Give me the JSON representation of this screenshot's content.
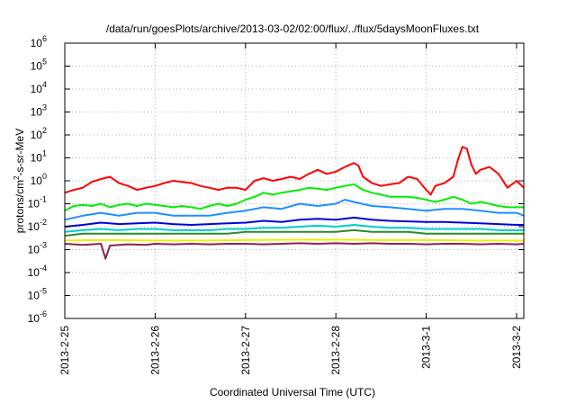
{
  "chart_data": {
    "type": "line",
    "title": "/data/run/goesPlots/archive/2013-03-02/02:00/flux/../flux/5daysMoonFluxes.txt",
    "xlabel": "Coordinated Universal Time (UTC)",
    "ylabel_parts": {
      "base": "protons/cm",
      "sup": "2",
      "rest": "-s-sr-MeV"
    },
    "y_scale": "log",
    "ylim": [
      1e-06,
      1000000.0
    ],
    "y_ticks": [
      {
        "exp": "-6"
      },
      {
        "exp": "-5"
      },
      {
        "exp": "-4"
      },
      {
        "exp": "-3"
      },
      {
        "exp": "-2"
      },
      {
        "exp": "-1"
      },
      {
        "exp": "0"
      },
      {
        "exp": "1"
      },
      {
        "exp": "2"
      },
      {
        "exp": "3"
      },
      {
        "exp": "4"
      },
      {
        "exp": "5"
      },
      {
        "exp": "6"
      }
    ],
    "x_ticks": [
      {
        "label": "2013-2-25",
        "day": 0
      },
      {
        "label": "2013-2-26",
        "day": 1
      },
      {
        "label": "2013-2-27",
        "day": 2
      },
      {
        "label": "2013-2-28",
        "day": 3
      },
      {
        "label": "2013-3-1",
        "day": 4
      },
      {
        "label": "2013-3-2",
        "day": 5
      }
    ],
    "xlim_days": [
      0,
      5.08
    ],
    "grid": true,
    "legend": "none",
    "series": [
      {
        "color": "#ff0000",
        "points": [
          [
            0,
            0.3
          ],
          [
            0.1,
            0.4
          ],
          [
            0.2,
            0.5
          ],
          [
            0.3,
            0.9
          ],
          [
            0.4,
            1.2
          ],
          [
            0.5,
            1.5
          ],
          [
            0.6,
            0.8
          ],
          [
            0.7,
            0.6
          ],
          [
            0.8,
            0.4
          ],
          [
            0.9,
            0.5
          ],
          [
            1.0,
            0.6
          ],
          [
            1.1,
            0.8
          ],
          [
            1.2,
            1.0
          ],
          [
            1.3,
            0.9
          ],
          [
            1.4,
            0.8
          ],
          [
            1.5,
            0.6
          ],
          [
            1.6,
            0.5
          ],
          [
            1.7,
            0.4
          ],
          [
            1.8,
            0.5
          ],
          [
            1.9,
            0.5
          ],
          [
            2.0,
            0.4
          ],
          [
            2.1,
            1.0
          ],
          [
            2.2,
            1.3
          ],
          [
            2.3,
            1.0
          ],
          [
            2.4,
            1.2
          ],
          [
            2.5,
            1.5
          ],
          [
            2.6,
            1.2
          ],
          [
            2.7,
            2.0
          ],
          [
            2.8,
            3.0
          ],
          [
            2.9,
            2.0
          ],
          [
            3.0,
            2.5
          ],
          [
            3.1,
            4.0
          ],
          [
            3.2,
            6.0
          ],
          [
            3.25,
            4.5
          ],
          [
            3.3,
            1.5
          ],
          [
            3.4,
            0.8
          ],
          [
            3.5,
            0.6
          ],
          [
            3.6,
            0.7
          ],
          [
            3.7,
            0.8
          ],
          [
            3.8,
            1.5
          ],
          [
            3.9,
            1.2
          ],
          [
            4.0,
            0.4
          ],
          [
            4.05,
            0.25
          ],
          [
            4.1,
            0.6
          ],
          [
            4.2,
            0.8
          ],
          [
            4.3,
            1.5
          ],
          [
            4.35,
            8
          ],
          [
            4.4,
            30
          ],
          [
            4.45,
            25
          ],
          [
            4.5,
            5
          ],
          [
            4.55,
            2
          ],
          [
            4.6,
            3
          ],
          [
            4.7,
            4
          ],
          [
            4.8,
            2
          ],
          [
            4.9,
            0.5
          ],
          [
            5.0,
            1.0
          ],
          [
            5.08,
            0.5
          ]
        ]
      },
      {
        "color": "#00ee00",
        "points": [
          [
            0,
            0.05
          ],
          [
            0.1,
            0.08
          ],
          [
            0.2,
            0.09
          ],
          [
            0.3,
            0.08
          ],
          [
            0.4,
            0.1
          ],
          [
            0.5,
            0.07
          ],
          [
            0.6,
            0.09
          ],
          [
            0.7,
            0.1
          ],
          [
            0.8,
            0.08
          ],
          [
            0.9,
            0.1
          ],
          [
            1.0,
            0.09
          ],
          [
            1.1,
            0.08
          ],
          [
            1.2,
            0.07
          ],
          [
            1.3,
            0.08
          ],
          [
            1.4,
            0.07
          ],
          [
            1.5,
            0.06
          ],
          [
            1.6,
            0.08
          ],
          [
            1.7,
            0.1
          ],
          [
            1.8,
            0.08
          ],
          [
            1.9,
            0.1
          ],
          [
            2.0,
            0.15
          ],
          [
            2.1,
            0.2
          ],
          [
            2.2,
            0.3
          ],
          [
            2.3,
            0.25
          ],
          [
            2.4,
            0.3
          ],
          [
            2.5,
            0.35
          ],
          [
            2.6,
            0.4
          ],
          [
            2.7,
            0.5
          ],
          [
            2.8,
            0.45
          ],
          [
            2.9,
            0.4
          ],
          [
            3.0,
            0.5
          ],
          [
            3.1,
            0.6
          ],
          [
            3.2,
            0.7
          ],
          [
            3.3,
            0.4
          ],
          [
            3.4,
            0.3
          ],
          [
            3.5,
            0.25
          ],
          [
            3.6,
            0.2
          ],
          [
            3.7,
            0.2
          ],
          [
            3.8,
            0.2
          ],
          [
            3.9,
            0.18
          ],
          [
            4.0,
            0.15
          ],
          [
            4.1,
            0.12
          ],
          [
            4.2,
            0.15
          ],
          [
            4.3,
            0.2
          ],
          [
            4.4,
            0.15
          ],
          [
            4.5,
            0.1
          ],
          [
            4.6,
            0.12
          ],
          [
            4.7,
            0.1
          ],
          [
            4.8,
            0.08
          ],
          [
            4.9,
            0.07
          ],
          [
            5.0,
            0.07
          ],
          [
            5.08,
            0.07
          ]
        ]
      },
      {
        "color": "#1e8fff",
        "points": [
          [
            0,
            0.02
          ],
          [
            0.2,
            0.03
          ],
          [
            0.4,
            0.04
          ],
          [
            0.6,
            0.03
          ],
          [
            0.8,
            0.04
          ],
          [
            1.0,
            0.04
          ],
          [
            1.2,
            0.03
          ],
          [
            1.4,
            0.03
          ],
          [
            1.6,
            0.03
          ],
          [
            1.8,
            0.04
          ],
          [
            2.0,
            0.05
          ],
          [
            2.2,
            0.07
          ],
          [
            2.4,
            0.06
          ],
          [
            2.6,
            0.1
          ],
          [
            2.8,
            0.08
          ],
          [
            3.0,
            0.1
          ],
          [
            3.1,
            0.15
          ],
          [
            3.2,
            0.12
          ],
          [
            3.4,
            0.08
          ],
          [
            3.6,
            0.07
          ],
          [
            3.8,
            0.06
          ],
          [
            4.0,
            0.05
          ],
          [
            4.2,
            0.06
          ],
          [
            4.4,
            0.06
          ],
          [
            4.6,
            0.05
          ],
          [
            4.8,
            0.04
          ],
          [
            5.0,
            0.04
          ],
          [
            5.08,
            0.03
          ]
        ]
      },
      {
        "color": "#0000dd",
        "points": [
          [
            0,
            0.01
          ],
          [
            0.2,
            0.012
          ],
          [
            0.4,
            0.015
          ],
          [
            0.6,
            0.013
          ],
          [
            0.8,
            0.014
          ],
          [
            1.0,
            0.015
          ],
          [
            1.2,
            0.013
          ],
          [
            1.4,
            0.012
          ],
          [
            1.6,
            0.013
          ],
          [
            1.8,
            0.014
          ],
          [
            2.0,
            0.015
          ],
          [
            2.2,
            0.018
          ],
          [
            2.4,
            0.016
          ],
          [
            2.6,
            0.02
          ],
          [
            2.8,
            0.022
          ],
          [
            3.0,
            0.02
          ],
          [
            3.2,
            0.025
          ],
          [
            3.4,
            0.02
          ],
          [
            3.6,
            0.018
          ],
          [
            3.8,
            0.017
          ],
          [
            4.0,
            0.016
          ],
          [
            4.2,
            0.016
          ],
          [
            4.4,
            0.015
          ],
          [
            4.6,
            0.014
          ],
          [
            4.8,
            0.013
          ],
          [
            5.0,
            0.012
          ],
          [
            5.08,
            0.012
          ]
        ]
      },
      {
        "color": "#00cccc",
        "points": [
          [
            0,
            0.006
          ],
          [
            0.2,
            0.007
          ],
          [
            0.4,
            0.008
          ],
          [
            0.6,
            0.007
          ],
          [
            0.8,
            0.008
          ],
          [
            1.0,
            0.008
          ],
          [
            1.2,
            0.007
          ],
          [
            1.4,
            0.007
          ],
          [
            1.6,
            0.007
          ],
          [
            1.8,
            0.008
          ],
          [
            2.0,
            0.008
          ],
          [
            2.2,
            0.009
          ],
          [
            2.4,
            0.009
          ],
          [
            2.6,
            0.01
          ],
          [
            2.8,
            0.011
          ],
          [
            3.0,
            0.01
          ],
          [
            3.2,
            0.012
          ],
          [
            3.4,
            0.01
          ],
          [
            3.6,
            0.009
          ],
          [
            3.8,
            0.009
          ],
          [
            4.0,
            0.008
          ],
          [
            4.2,
            0.008
          ],
          [
            4.4,
            0.008
          ],
          [
            4.6,
            0.008
          ],
          [
            4.8,
            0.007
          ],
          [
            5.0,
            0.007
          ],
          [
            5.08,
            0.007
          ]
        ]
      },
      {
        "color": "#2a8a2a",
        "points": [
          [
            0,
            0.004
          ],
          [
            0.2,
            0.005
          ],
          [
            0.4,
            0.005
          ],
          [
            0.6,
            0.005
          ],
          [
            0.8,
            0.005
          ],
          [
            1.0,
            0.005
          ],
          [
            1.2,
            0.005
          ],
          [
            1.4,
            0.005
          ],
          [
            1.6,
            0.005
          ],
          [
            1.8,
            0.005
          ],
          [
            2.0,
            0.006
          ],
          [
            2.2,
            0.006
          ],
          [
            2.4,
            0.006
          ],
          [
            2.6,
            0.006
          ],
          [
            2.8,
            0.006
          ],
          [
            3.0,
            0.006
          ],
          [
            3.2,
            0.007
          ],
          [
            3.4,
            0.006
          ],
          [
            3.6,
            0.006
          ],
          [
            3.8,
            0.006
          ],
          [
            4.0,
            0.005
          ],
          [
            4.2,
            0.005
          ],
          [
            4.4,
            0.005
          ],
          [
            4.6,
            0.005
          ],
          [
            4.8,
            0.005
          ],
          [
            5.0,
            0.005
          ],
          [
            5.08,
            0.005
          ]
        ]
      },
      {
        "color": "#eeee00",
        "points": [
          [
            0,
            0.0025
          ],
          [
            0.5,
            0.0026
          ],
          [
            1.0,
            0.0025
          ],
          [
            1.5,
            0.0025
          ],
          [
            2.0,
            0.0026
          ],
          [
            2.5,
            0.0027
          ],
          [
            3.0,
            0.0027
          ],
          [
            3.5,
            0.0026
          ],
          [
            4.0,
            0.0026
          ],
          [
            4.5,
            0.0025
          ],
          [
            5.08,
            0.0025
          ]
        ]
      },
      {
        "color": "#8b2252",
        "points": [
          [
            0,
            0.0018
          ],
          [
            0.2,
            0.0016
          ],
          [
            0.4,
            0.0018
          ],
          [
            0.45,
            0.0004
          ],
          [
            0.5,
            0.0015
          ],
          [
            0.7,
            0.0017
          ],
          [
            0.9,
            0.0016
          ],
          [
            1.0,
            0.0018
          ],
          [
            1.2,
            0.0017
          ],
          [
            1.4,
            0.0018
          ],
          [
            1.6,
            0.0017
          ],
          [
            1.8,
            0.0018
          ],
          [
            2.0,
            0.0018
          ],
          [
            2.2,
            0.0017
          ],
          [
            2.4,
            0.0018
          ],
          [
            2.6,
            0.0019
          ],
          [
            2.8,
            0.0018
          ],
          [
            3.0,
            0.0019
          ],
          [
            3.2,
            0.0018
          ],
          [
            3.4,
            0.0019
          ],
          [
            3.6,
            0.0018
          ],
          [
            3.8,
            0.0018
          ],
          [
            4.0,
            0.0017
          ],
          [
            4.2,
            0.0018
          ],
          [
            4.4,
            0.0018
          ],
          [
            4.6,
            0.0017
          ],
          [
            4.8,
            0.0018
          ],
          [
            5.0,
            0.0017
          ],
          [
            5.08,
            0.0018
          ]
        ]
      }
    ]
  }
}
